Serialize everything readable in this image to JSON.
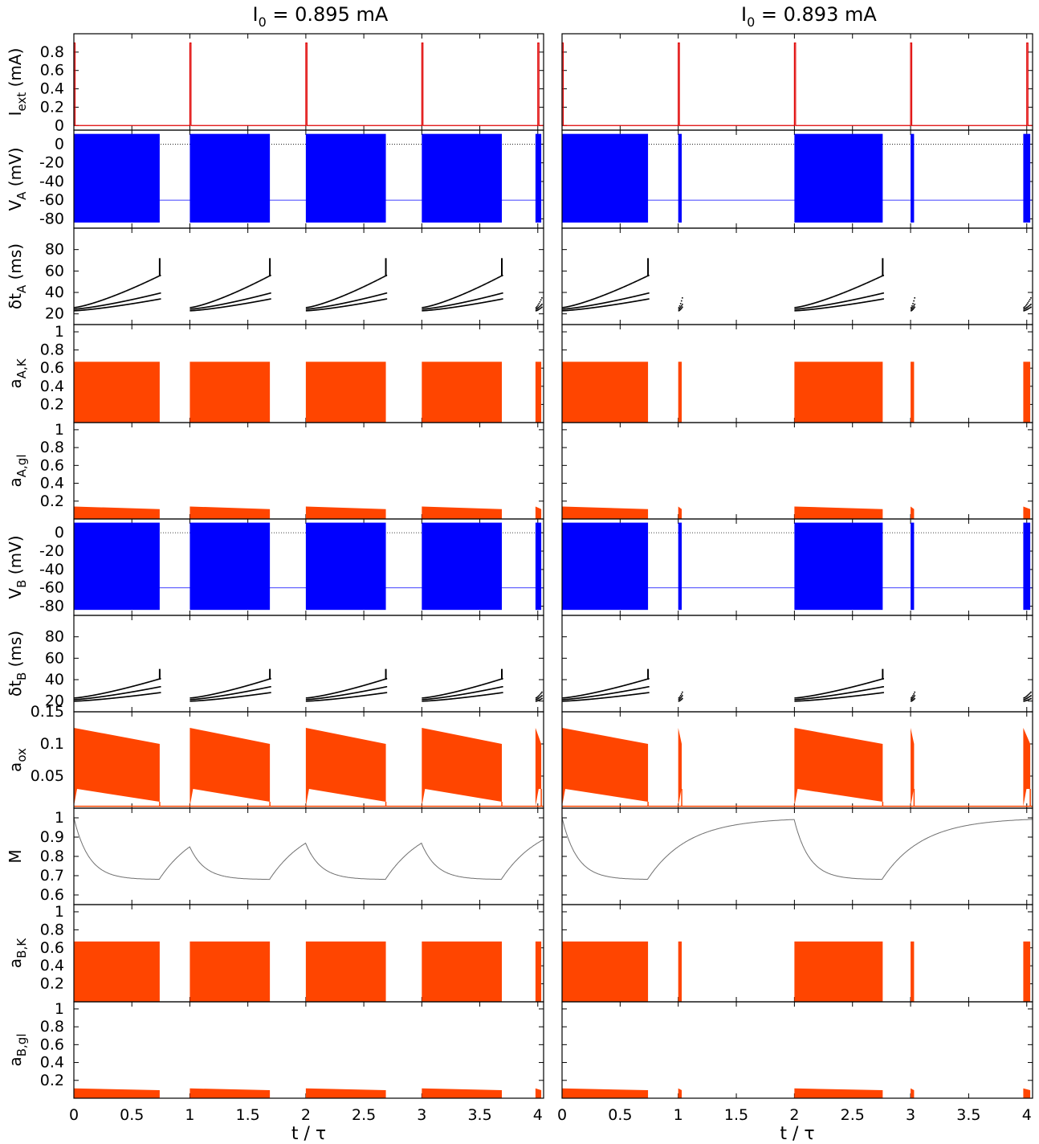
{
  "figure": {
    "colors": {
      "blue": "#0000ff",
      "orange": "#ff4500",
      "red": "#e00000",
      "black": "#000000",
      "gray": "#707070"
    },
    "columns": [
      {
        "title_main": "I",
        "title_sub": "0",
        "title_rest": " = 0.895 mA",
        "xlabel": "t / τ",
        "bursts": [
          [
            0,
            0.74
          ],
          [
            1.0,
            1.69
          ],
          [
            2.0,
            2.69
          ],
          [
            3.0,
            3.69
          ],
          [
            3.98,
            4.03
          ]
        ]
      },
      {
        "title_main": "I",
        "title_sub": "0",
        "title_rest": " = 0.893 mA",
        "xlabel": "t / τ",
        "bursts": [
          [
            0,
            0.74
          ],
          [
            1.0,
            1.03
          ],
          [
            2.0,
            2.76
          ],
          [
            3.0,
            3.03
          ],
          [
            3.97,
            4.03
          ]
        ]
      }
    ],
    "xticks": [
      "0",
      "0.5",
      "1",
      "1.5",
      "2",
      "2.5",
      "3",
      "3.5",
      "4"
    ]
  },
  "chart_data": [
    {
      "type": "line",
      "panel": "I_ext",
      "ylabel_main": "I",
      "ylabel_sub": "ext",
      "ylabel_rest": " (mA)",
      "ylim": [
        -0.05,
        1.0
      ],
      "yticks": [
        "0",
        "0.2",
        "0.4",
        "0.6",
        "0.8"
      ],
      "pulse_amplitude": 0.9,
      "pulse_times": [
        0,
        1,
        2,
        3,
        4
      ],
      "pulse_width": 0.01
    },
    {
      "type": "area",
      "panel": "V_A",
      "ylabel_main": "V",
      "ylabel_sub": "A",
      "ylabel_rest": " (mV)",
      "ylim": [
        -90,
        15
      ],
      "yticks": [
        "0",
        "-20",
        "-40",
        "-60",
        "-80"
      ],
      "spike_range": [
        -84,
        11
      ],
      "rest": -60
    },
    {
      "type": "scatter",
      "panel": "dt_A",
      "ylabel_main": "δt",
      "ylabel_sub": "A",
      "ylabel_rest": " (ms)",
      "ylim": [
        10,
        100
      ],
      "yticks": [
        "20",
        "40",
        "60",
        "80"
      ],
      "start": 25,
      "end_levels": [
        36,
        40,
        55
      ],
      "end_spike": 72
    },
    {
      "type": "area",
      "panel": "a_AK",
      "ylabel_main": "a",
      "ylabel_sub": "A,K",
      "ylabel_rest": "",
      "ylim": [
        0,
        1.08
      ],
      "yticks": [
        "0.2",
        "0.4",
        "0.6",
        "0.8",
        "1"
      ],
      "extra_ticks": [
        "0.2",
        "0.4",
        "0.6",
        "0.8"
      ],
      "level": 0.67
    },
    {
      "type": "area",
      "panel": "a_Agl",
      "ylabel_main": "a",
      "ylabel_sub": "A,gl",
      "ylabel_rest": "",
      "ylim": [
        0,
        1.08
      ],
      "yticks": [
        "0.2",
        "0.4",
        "0.6",
        "0.8",
        "1"
      ],
      "level_start": 0.14,
      "level_end": 0.11
    },
    {
      "type": "area",
      "panel": "V_B",
      "ylabel_main": "V",
      "ylabel_sub": "B",
      "ylabel_rest": " (mV)",
      "ylim": [
        -90,
        15
      ],
      "yticks": [
        "0",
        "-20",
        "-40",
        "-60",
        "-80"
      ],
      "spike_range": [
        -84,
        11
      ],
      "rest": -60
    },
    {
      "type": "scatter",
      "panel": "dt_B",
      "ylabel_main": "δt",
      "ylabel_sub": "B",
      "ylabel_rest": " (ms)",
      "ylim": [
        10,
        100
      ],
      "yticks": [
        "20",
        "40",
        "60",
        "80"
      ],
      "start": 22,
      "end_levels": [
        30,
        34,
        40
      ],
      "end_spike": 50
    },
    {
      "type": "area",
      "panel": "a_ox",
      "ylabel_main": "a",
      "ylabel_sub": "ox",
      "ylabel_rest": "",
      "ylim": [
        0,
        0.15
      ],
      "yticks": [
        "0.05",
        "0.1",
        "0.15"
      ],
      "upper_start": 0.125,
      "upper_end": 0.1,
      "lower_start": 0.03,
      "lower_end": 0.01,
      "baseline": 0.003
    },
    {
      "type": "line",
      "panel": "M",
      "ylabel_main": "M",
      "ylabel_sub": "",
      "ylabel_rest": "",
      "ylim": [
        0.55,
        1.05
      ],
      "yticks": [
        "0.6",
        "0.7",
        "0.8",
        "0.9",
        "1"
      ],
      "min": 0.68,
      "max": 1.0
    },
    {
      "type": "area",
      "panel": "a_BK",
      "ylabel_main": "a",
      "ylabel_sub": "B,K",
      "ylabel_rest": "",
      "ylim": [
        0,
        1.08
      ],
      "yticks": [
        "0.2",
        "0.4",
        "0.6",
        "0.8",
        "1"
      ],
      "level": 0.67
    },
    {
      "type": "area",
      "panel": "a_Bgl",
      "ylabel_main": "a",
      "ylabel_sub": "B,gl",
      "ylabel_rest": "",
      "ylim": [
        0,
        1.08
      ],
      "yticks": [
        "0.2",
        "0.4",
        "0.6",
        "0.8",
        "1"
      ],
      "level_start": 0.11,
      "level_end": 0.09
    }
  ]
}
